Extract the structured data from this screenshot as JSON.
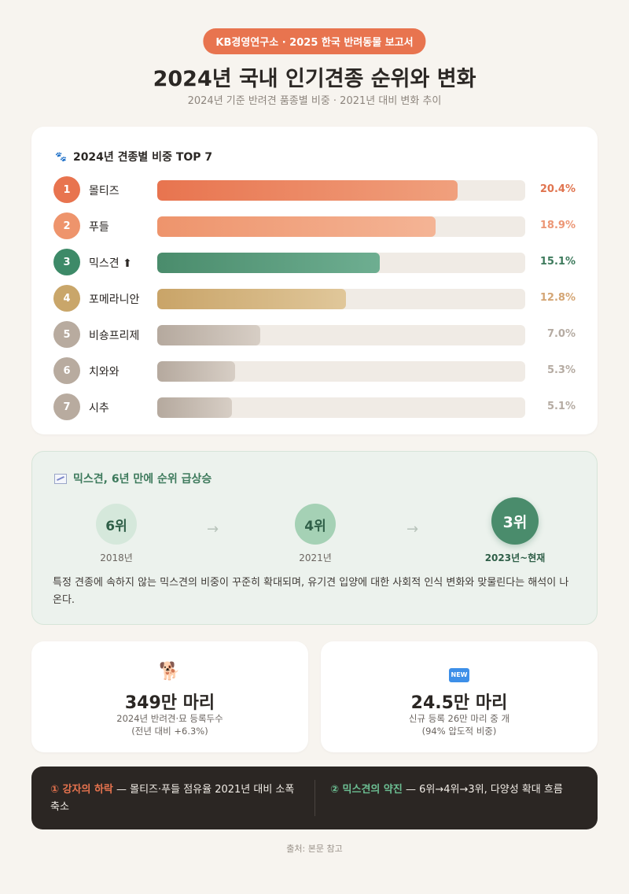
{
  "header": {
    "badge": "KB경영연구소 · 2025 한국 반려동물 보고서",
    "title": "2024년 국내 인기견종 순위와 변화",
    "subtitle": "2024년 기준 반려견 품종별 비중 · 2021년 대비 변화 추이"
  },
  "ranking": {
    "title": "2024년 견종별 비중 TOP 7",
    "icon": "paw-icon"
  },
  "chart_data": {
    "type": "bar",
    "title": "2024년 견종별 비중 TOP 7",
    "categories": [
      "몰티즈",
      "푸들",
      "믹스견 ⬆",
      "포메라니안",
      "비숑프리제",
      "치와와",
      "시추"
    ],
    "ranks": [
      "1",
      "2",
      "3",
      "4",
      "5",
      "6",
      "7"
    ],
    "values": [
      20.4,
      18.9,
      15.1,
      12.8,
      7.0,
      5.3,
      5.1
    ],
    "value_labels": [
      "20.4%",
      "18.9%",
      "15.1%",
      "12.8%",
      "7.0%",
      "5.3%",
      "5.1%"
    ],
    "unit": "%",
    "xlim": [
      0,
      25
    ],
    "colors": {
      "circle": [
        "#e8744f",
        "#ee946c",
        "#3d8a68",
        "#c9a66a",
        "#b8ab9f",
        "#b8ab9f",
        "#b8ab9f"
      ],
      "bar_start": [
        "#e8744f",
        "#ee946c",
        "#4a8c6c",
        "#c9a468",
        "#b5a99e",
        "#b5a99e",
        "#b5a99e"
      ],
      "bar_end": [
        "#f0a07d",
        "#f4b495",
        "#6eae91",
        "#e0c79a",
        "#d7cec5",
        "#d7cec5",
        "#d7cec5"
      ],
      "label": [
        "#e0744f",
        "#ec9675",
        "#3d7a5c",
        "#d4a574",
        "#b5aba2",
        "#b5aba2",
        "#b5aba2"
      ]
    }
  },
  "trend": {
    "title": "믹스견, 6년 만에 순위 급상승",
    "steps": [
      {
        "rank": "6위",
        "year": "2018년"
      },
      {
        "rank": "4위",
        "year": "2021년"
      },
      {
        "rank": "3위",
        "year": "2023년~현재"
      }
    ],
    "arrow": "→",
    "description": "특정 견종에 속하지 않는 믹스견의 비중이 꾸준히 확대되며, 유기견 입양에 대한 사회적 인식 변화와 맞물린다는 해석이 나온다."
  },
  "stats": [
    {
      "icon": "dog-icon",
      "value": "349만 마리",
      "desc1": "2024년 반려견·묘 등록두수",
      "desc2": "(전년 대비 +6.3%)"
    },
    {
      "icon": "new-icon",
      "icon_text": "NEW",
      "value": "24.5만 마리",
      "desc1": "신규 등록 26만 마리 중 개",
      "desc2": "(94% 압도적 비중)"
    }
  ],
  "insights": {
    "left_label": "① 강자의 하락",
    "left_text": " — 몰티즈·푸들 점유율 2021년 대비 소폭 축소",
    "right_label": "② 믹스견의 약진",
    "right_text": " — 6위→4위→3위, 다양성 확대 흐름"
  },
  "source": "출처: 본문 참고"
}
